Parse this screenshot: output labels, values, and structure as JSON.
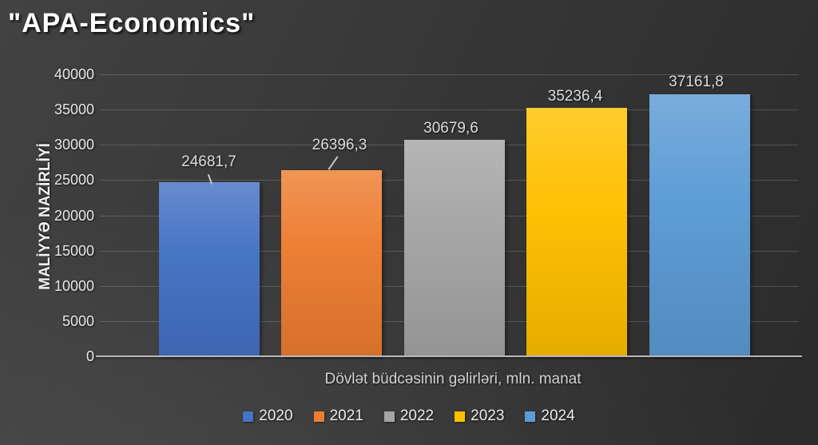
{
  "header": {
    "title": "\"APA-Economics\""
  },
  "chart_data": {
    "type": "bar",
    "title": "\"APA-Economics\"",
    "categories": [
      "2020",
      "2021",
      "2022",
      "2023",
      "2024"
    ],
    "values": [
      24681.7,
      26396.3,
      30679.6,
      35236.4,
      37161.8
    ],
    "value_labels": [
      "24681,7",
      "26396,3",
      "30679,6",
      "35236,4",
      "37161,8"
    ],
    "colors": [
      "#4472C4",
      "#ED7D31",
      "#A5A5A5",
      "#FFC000",
      "#5B9BD5"
    ],
    "xlabel": "Dövlət büdcəsinin gəlirləri, mln. manat",
    "ylabel": "MALİYYƏ NAZİRLİYİ",
    "ylim": [
      0,
      40000
    ],
    "yticks": [
      0,
      5000,
      10000,
      15000,
      20000,
      25000,
      30000,
      35000,
      40000
    ],
    "grid": true,
    "legend_position": "bottom",
    "legend": [
      "2020",
      "2021",
      "2022",
      "2023",
      "2024"
    ],
    "background": "#353535",
    "text_color": "#e8e8e8"
  }
}
